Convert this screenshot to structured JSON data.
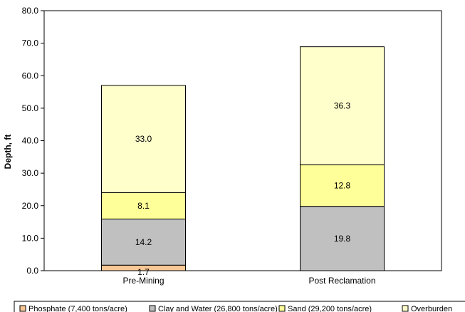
{
  "chart_data": {
    "type": "bar",
    "stacked": true,
    "categories": [
      "Pre-Mining",
      "Post Reclamation"
    ],
    "series": [
      {
        "name": "Phosphate (7,400 tons/acre)",
        "values": [
          1.7,
          0
        ],
        "color": "#f9c795",
        "labels": [
          "1.7",
          ""
        ]
      },
      {
        "name": "Clay and Water (26,800 tons/acre)",
        "values": [
          14.2,
          19.8
        ],
        "color": "#c0c0c0",
        "labels": [
          "14.2",
          "19.8"
        ]
      },
      {
        "name": "Sand (29,200 tons/acre)",
        "values": [
          8.1,
          12.8
        ],
        "color": "#ffff99",
        "labels": [
          "8.1",
          "12.8"
        ]
      },
      {
        "name": "Overburden",
        "values": [
          33.0,
          36.3
        ],
        "color": "#ffffcc",
        "labels": [
          "33.0",
          "36.3"
        ]
      }
    ],
    "ylabel": "Depth, ft",
    "xlabel": "",
    "ylim": [
      0,
      80
    ],
    "yticks": [
      "0.0",
      "10.0",
      "20.0",
      "30.0",
      "40.0",
      "50.0",
      "60.0",
      "70.0",
      "80.0"
    ],
    "grid": false,
    "legend_position": "bottom"
  }
}
